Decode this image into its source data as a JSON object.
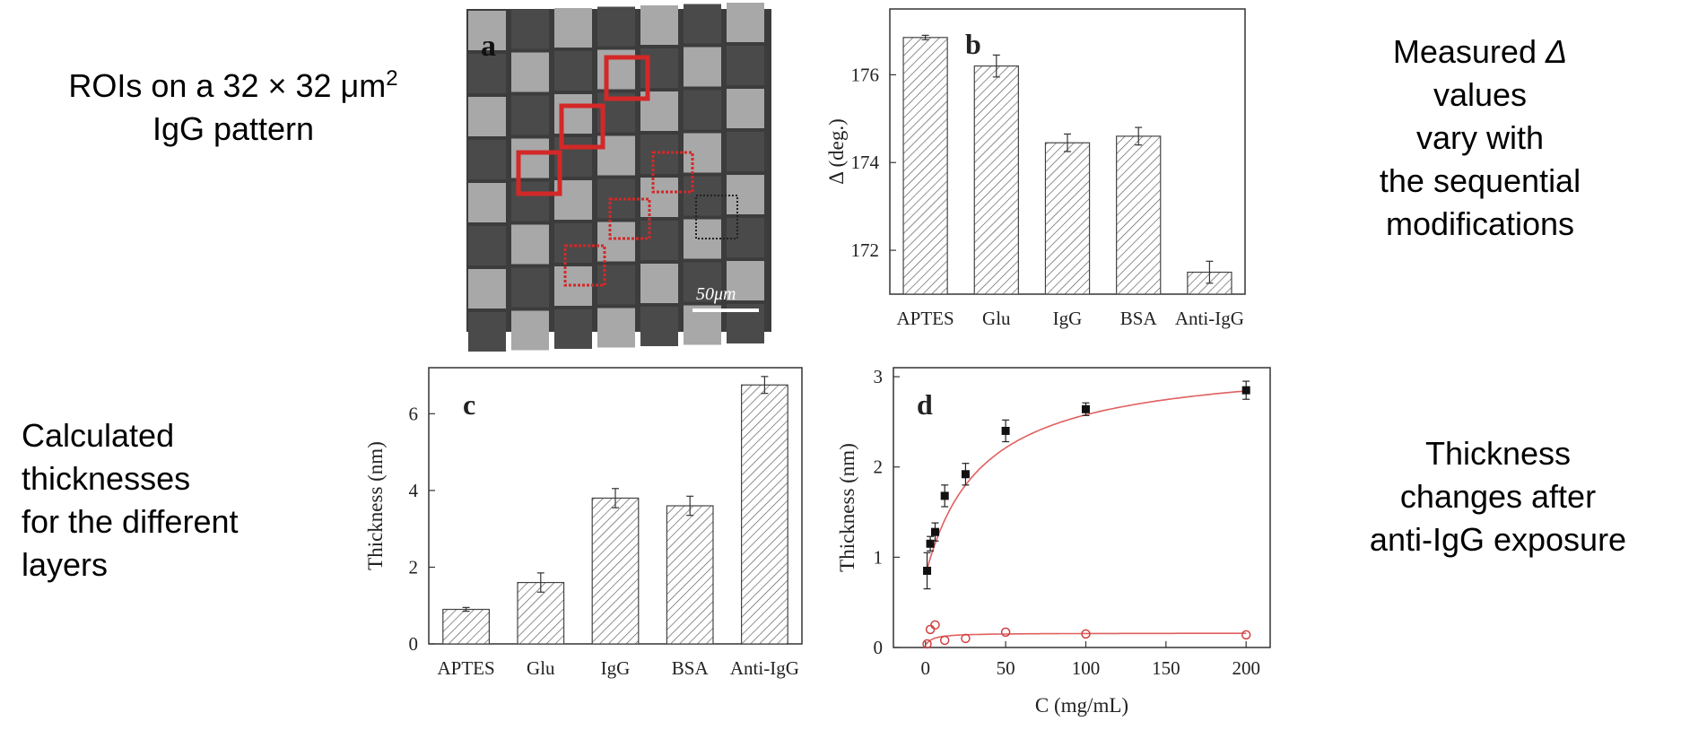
{
  "captions": {
    "top_left_1": "ROIs on a 32 × 32 μm",
    "top_left_sup": "2",
    "top_left_2": "IgG pattern",
    "top_right": [
      "Measured Δ",
      "values",
      "vary with",
      "the sequential",
      "modifications"
    ],
    "bottom_left": [
      "Calculated",
      "thicknesses",
      "for the different",
      "layers"
    ],
    "bottom_right": [
      "Thickness",
      "changes after",
      "anti-IgG exposure"
    ]
  },
  "panel_a": {
    "label": "a",
    "scale_bar": "50μm",
    "colors": {
      "bright_square": "#a8a8a8",
      "dark_square": "#4a4a4a",
      "roi": "#d42828"
    }
  },
  "chart_data": [
    {
      "panel": "b",
      "type": "bar",
      "categories": [
        "APTES",
        "Glu",
        "IgG",
        "BSA",
        "Anti-IgG"
      ],
      "values": [
        176.85,
        176.2,
        174.45,
        174.6,
        171.5
      ],
      "errors": [
        0.05,
        0.25,
        0.2,
        0.2,
        0.25
      ],
      "ylabel": "Δ (deg.)",
      "ylim": [
        171,
        177.5
      ],
      "yticks": [
        172,
        174,
        176
      ],
      "hatch": true,
      "grid": false
    },
    {
      "panel": "c",
      "type": "bar",
      "categories": [
        "APTES",
        "Glu",
        "IgG",
        "BSA",
        "Anti-IgG"
      ],
      "values": [
        0.9,
        1.6,
        3.8,
        3.6,
        6.75
      ],
      "errors": [
        0.05,
        0.25,
        0.25,
        0.25,
        0.22
      ],
      "ylabel": "Thickness (nm)",
      "ylim": [
        0,
        7.2
      ],
      "yticks": [
        0,
        2,
        4,
        6
      ],
      "hatch": true,
      "grid": false
    },
    {
      "panel": "d",
      "type": "scatter",
      "xlabel": "C (mg/mL)",
      "ylabel": "Thickness (nm)",
      "xlim": [
        -20,
        215
      ],
      "ylim": [
        0,
        3.1
      ],
      "xticks": [
        0,
        50,
        100,
        150,
        200
      ],
      "yticks": [
        0,
        1,
        2,
        3
      ],
      "series": [
        {
          "marker": "filled-square",
          "x": [
            1,
            3,
            6,
            12,
            25,
            50,
            100,
            200
          ],
          "y": [
            0.85,
            1.15,
            1.28,
            1.68,
            1.92,
            2.4,
            2.64,
            2.85
          ],
          "errors": [
            0.2,
            0.08,
            0.1,
            0.12,
            0.12,
            0.12,
            0.07,
            0.1
          ],
          "fit_color": "#e06060"
        },
        {
          "marker": "open-circle",
          "x": [
            1,
            3,
            6,
            12,
            25,
            50,
            100,
            200
          ],
          "y": [
            0.04,
            0.2,
            0.25,
            0.08,
            0.1,
            0.17,
            0.15,
            0.14
          ],
          "errors": [
            0,
            0,
            0,
            0,
            0,
            0,
            0,
            0
          ],
          "fit_color": "#e06060"
        }
      ]
    }
  ]
}
